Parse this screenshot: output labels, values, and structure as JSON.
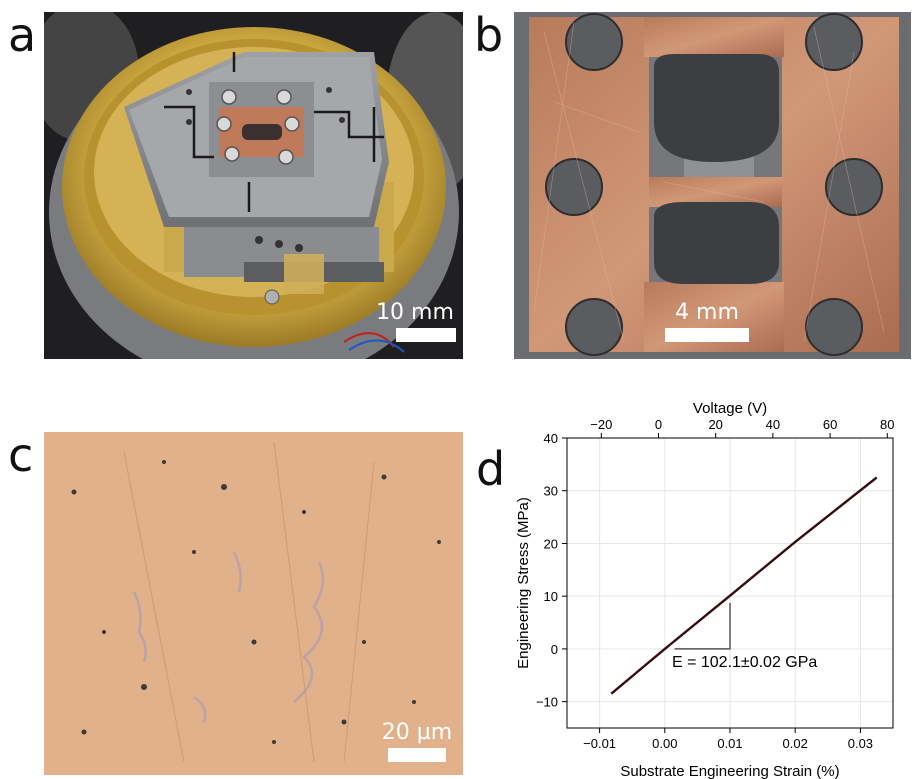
{
  "panels": {
    "a": {
      "letter": "a",
      "scalebar": "10 mm"
    },
    "b": {
      "letter": "b",
      "scalebar": "4 mm"
    },
    "c": {
      "letter": "c",
      "scalebar": "20 µm"
    },
    "d": {
      "letter": "d"
    }
  },
  "colors": {
    "gold": "#c9a53f",
    "copper": "#c48a66",
    "steel": "#8d8f93",
    "micro_bg": "#e6b892",
    "line": "#3a0d0d"
  },
  "chart_data": {
    "type": "line",
    "title": "",
    "xlabel": "Substrate Engineering Strain (%)",
    "ylabel": "Engineering Stress (MPa)",
    "x2label": "Voltage (V)",
    "xlim": [
      -0.015,
      0.035
    ],
    "ylim": [
      -15,
      40
    ],
    "x2lim": [
      -32,
      82
    ],
    "xticks": [
      -0.01,
      0.0,
      0.01,
      0.02,
      0.03
    ],
    "xtick_labels": [
      "-0.01",
      "0.00",
      "0.01",
      "0.02",
      "0.03"
    ],
    "yticks": [
      -10,
      0,
      10,
      20,
      30,
      40
    ],
    "ytick_labels": [
      "-10",
      "0",
      "10",
      "20",
      "30",
      "40"
    ],
    "x2ticks": [
      -20,
      0,
      20,
      40,
      60,
      80
    ],
    "x2tick_labels": [
      "-20",
      "0",
      "20",
      "40",
      "60",
      "80"
    ],
    "grid": true,
    "series": [
      {
        "values": [
          [
            -0.0082,
            -8.5
          ],
          [
            0.0,
            0.0
          ],
          [
            0.01,
            10.1
          ],
          [
            0.02,
            20.3
          ],
          [
            0.0325,
            32.5
          ]
        ]
      }
    ],
    "annotation": "E = 102.1±0.02 GPa",
    "slope_triangle": {
      "x0": 0.0015,
      "x1": 0.01,
      "y0": 0.0,
      "y1": 8.7
    }
  }
}
